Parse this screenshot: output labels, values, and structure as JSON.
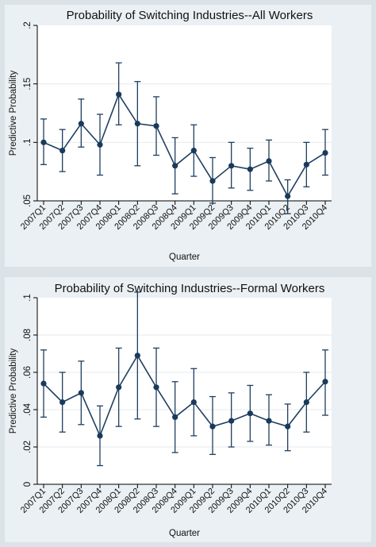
{
  "chart_data": [
    {
      "type": "line",
      "title": "Probability of Switching Industries--All Workers",
      "xlabel": "Quarter",
      "ylabel": "Predictive Probability",
      "ylim": [
        0.05,
        0.2
      ],
      "yticks": [
        0.05,
        0.1,
        0.15,
        0.2
      ],
      "ytick_labels": [
        ".05",
        ".1",
        ".15",
        ".2"
      ],
      "grid": true,
      "error_bars": true,
      "categories": [
        "2007Q1",
        "2007Q2",
        "2007Q3",
        "2007Q4",
        "2008Q1",
        "2008Q2",
        "2008Q3",
        "2008Q4",
        "2009Q1",
        "2009Q2",
        "2009Q3",
        "2009Q4",
        "2010Q1",
        "2010Q2",
        "2010Q3",
        "2010Q4"
      ],
      "series": [
        {
          "values": [
            0.1,
            0.093,
            0.116,
            0.098,
            0.141,
            0.116,
            0.114,
            0.08,
            0.093,
            0.067,
            0.08,
            0.077,
            0.084,
            0.054,
            0.081,
            0.091
          ],
          "upper": [
            0.12,
            0.111,
            0.137,
            0.124,
            0.168,
            0.152,
            0.139,
            0.104,
            0.115,
            0.087,
            0.1,
            0.095,
            0.102,
            0.068,
            0.1,
            0.111
          ],
          "lower": [
            0.081,
            0.075,
            0.096,
            0.072,
            0.115,
            0.08,
            0.089,
            0.056,
            0.071,
            0.048,
            0.061,
            0.059,
            0.067,
            0.039,
            0.062,
            0.072
          ]
        }
      ]
    },
    {
      "type": "line",
      "title": "Probability of Switching Industries--Formal Workers",
      "xlabel": "Quarter",
      "ylabel": "Predictive Probability",
      "ylim": [
        0,
        0.1
      ],
      "yticks": [
        0,
        0.02,
        0.04,
        0.06,
        0.08,
        0.1
      ],
      "ytick_labels": [
        "0",
        ".02",
        ".04",
        ".06",
        ".08",
        ".1"
      ],
      "grid": true,
      "error_bars": true,
      "categories": [
        "2007Q1",
        "2007Q2",
        "2007Q3",
        "2007Q4",
        "2008Q1",
        "2008Q2",
        "2008Q3",
        "2008Q4",
        "2009Q1",
        "2009Q2",
        "2009Q3",
        "2009Q4",
        "2010Q1",
        "2010Q2",
        "2010Q3",
        "2010Q4"
      ],
      "series": [
        {
          "values": [
            0.054,
            0.044,
            0.049,
            0.026,
            0.052,
            0.069,
            0.052,
            0.036,
            0.044,
            0.031,
            0.034,
            0.038,
            0.034,
            0.031,
            0.044,
            0.055
          ],
          "upper": [
            0.072,
            0.06,
            0.066,
            0.042,
            0.073,
            0.103,
            0.073,
            0.055,
            0.062,
            0.047,
            0.049,
            0.053,
            0.048,
            0.043,
            0.06,
            0.072
          ],
          "lower": [
            0.036,
            0.028,
            0.032,
            0.01,
            0.031,
            0.035,
            0.031,
            0.017,
            0.026,
            0.016,
            0.02,
            0.023,
            0.021,
            0.018,
            0.028,
            0.037
          ]
        }
      ]
    }
  ]
}
